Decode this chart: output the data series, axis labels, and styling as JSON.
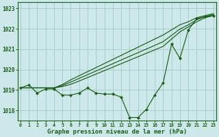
{
  "xlabel": "Graphe pression niveau de la mer (hPa)",
  "background_color": "#cce8e8",
  "grid_color": "#aacccc",
  "line_color": "#1a5c1a",
  "hours": [
    0,
    1,
    2,
    3,
    4,
    5,
    6,
    7,
    8,
    9,
    10,
    11,
    12,
    13,
    14,
    15,
    16,
    17,
    18,
    19,
    20,
    21,
    22,
    23
  ],
  "pressure_main": [
    1019.1,
    1019.25,
    1018.85,
    1019.05,
    1019.05,
    1018.75,
    1018.75,
    1018.85,
    1019.1,
    1018.85,
    1018.8,
    1018.8,
    1018.65,
    1017.65,
    1017.65,
    1018.05,
    1018.75,
    1019.35,
    1021.25,
    1020.55,
    1021.95,
    1022.5,
    1022.6,
    1022.65
  ],
  "pressure_line2": [
    1019.1,
    1019.1,
    1019.1,
    1019.1,
    1019.1,
    1019.17,
    1019.28,
    1019.44,
    1019.61,
    1019.78,
    1019.95,
    1020.12,
    1020.29,
    1020.46,
    1020.63,
    1020.8,
    1020.97,
    1021.14,
    1021.5,
    1021.85,
    1022.1,
    1022.35,
    1022.55,
    1022.65
  ],
  "pressure_line3": [
    1019.1,
    1019.1,
    1019.1,
    1019.1,
    1019.1,
    1019.22,
    1019.39,
    1019.57,
    1019.75,
    1019.93,
    1020.11,
    1020.29,
    1020.47,
    1020.65,
    1020.83,
    1021.01,
    1021.19,
    1021.37,
    1021.68,
    1021.99,
    1022.2,
    1022.45,
    1022.6,
    1022.7
  ],
  "pressure_line4": [
    1019.1,
    1019.1,
    1019.1,
    1019.1,
    1019.1,
    1019.27,
    1019.5,
    1019.7,
    1019.9,
    1020.1,
    1020.3,
    1020.5,
    1020.7,
    1020.9,
    1021.1,
    1021.3,
    1021.5,
    1021.7,
    1021.95,
    1022.2,
    1022.35,
    1022.55,
    1022.65,
    1022.75
  ],
  "ylim": [
    1017.5,
    1023.3
  ],
  "yticks": [
    1018,
    1019,
    1020,
    1021,
    1022,
    1023
  ],
  "xlim": [
    -0.3,
    23.3
  ]
}
